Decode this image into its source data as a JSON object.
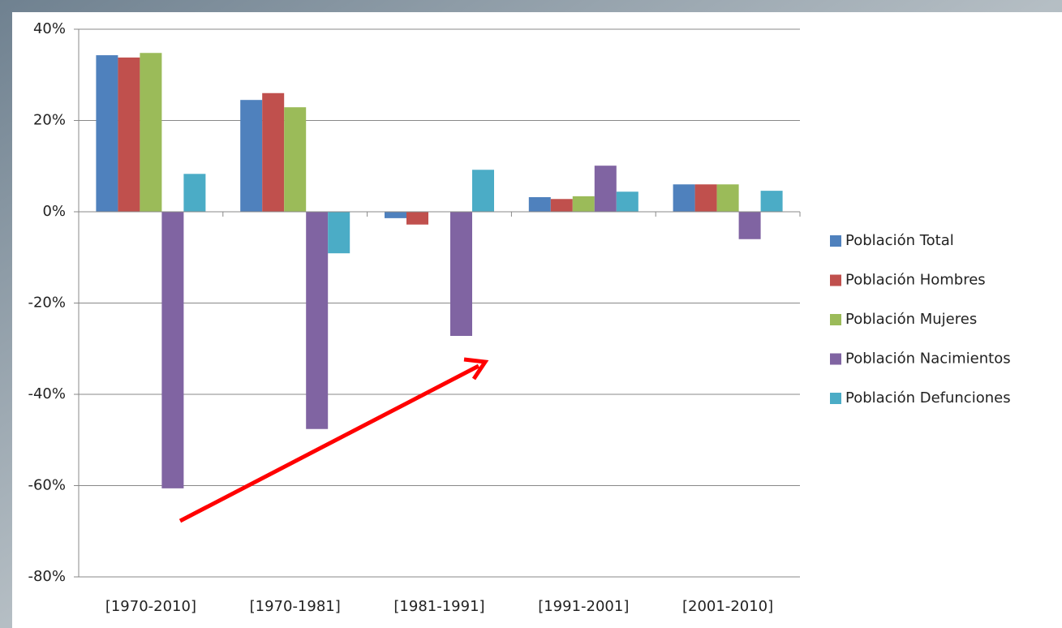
{
  "chart_data": {
    "type": "bar",
    "categories": [
      "[1970-2010]",
      "[1970-1981]",
      "[1981-1991]",
      "[1991-2001]",
      "[2001-2010]"
    ],
    "series": [
      {
        "name": "Población Total",
        "color": "#4f81bd",
        "values": [
          34.3,
          24.5,
          -1.4,
          3.2,
          6.0
        ]
      },
      {
        "name": "Población Hombres",
        "color": "#c0504d",
        "values": [
          33.8,
          26.0,
          -2.8,
          2.8,
          6.0
        ]
      },
      {
        "name": "Población Mujeres",
        "color": "#9bbb59",
        "values": [
          34.8,
          22.9,
          0,
          3.4,
          6.0
        ]
      },
      {
        "name": "Población Nacimientos",
        "color": "#8064a2",
        "values": [
          -60.6,
          -47.6,
          -27.2,
          10.1,
          -6.0
        ]
      },
      {
        "name": "Población Defunciones",
        "color": "#4bacc6",
        "values": [
          8.3,
          -9.1,
          9.2,
          4.4,
          4.6
        ]
      }
    ],
    "ylim": [
      -80,
      40
    ],
    "yticks": [
      {
        "value": -80,
        "label": "-80%"
      },
      {
        "value": -60,
        "label": "-60%"
      },
      {
        "value": -40,
        "label": "-40%"
      },
      {
        "value": -20,
        "label": "-20%"
      },
      {
        "value": 0,
        "label": "0%"
      },
      {
        "value": 20,
        "label": "20%"
      },
      {
        "value": 40,
        "label": "40%"
      }
    ],
    "grid": true,
    "legend": "right"
  }
}
